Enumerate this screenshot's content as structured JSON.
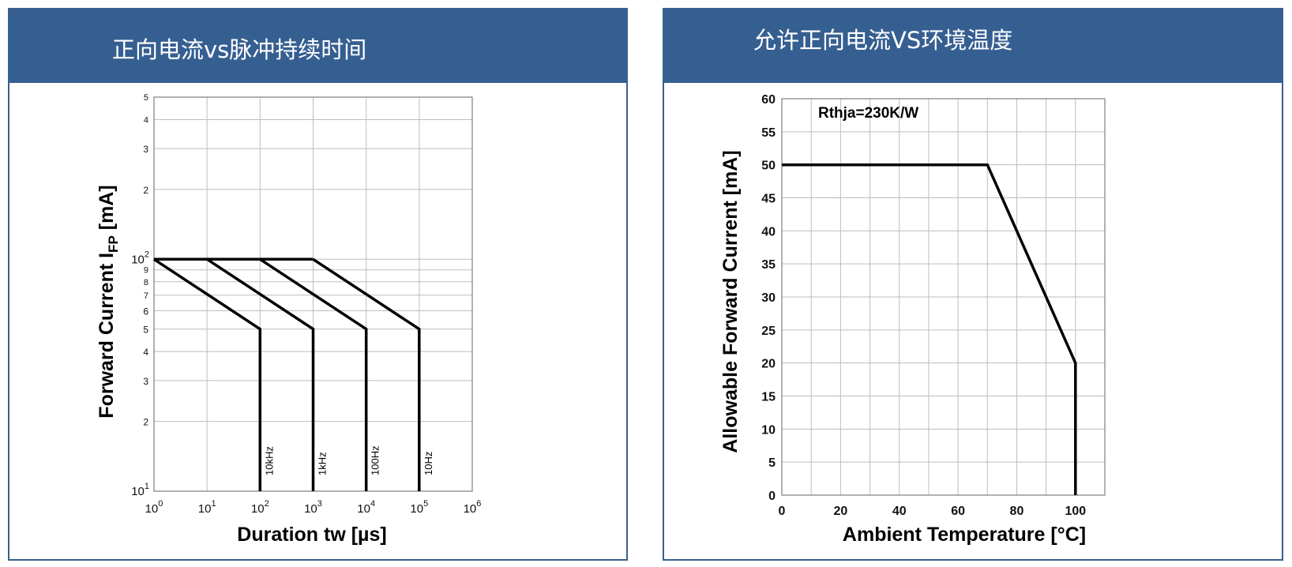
{
  "panels": {
    "left": {
      "title": "正向电流vs脉冲持续时间"
    },
    "right": {
      "title": "允许正向电流VS环境温度"
    }
  },
  "chart_data": [
    {
      "type": "line",
      "title": "正向电流vs脉冲持续时间",
      "xlabel": "Duration tw [µs]",
      "ylabel_main": "Forward Current I",
      "ylabel_sub": "FP",
      "ylabel_unit": " [mA]",
      "x_scale": "log",
      "y_scale": "log",
      "xlim": [
        1,
        1000000
      ],
      "ylim": [
        10,
        500
      ],
      "x_ticks": [
        {
          "value": 1,
          "base": "10",
          "exp": "0"
        },
        {
          "value": 10,
          "base": "10",
          "exp": "1"
        },
        {
          "value": 100,
          "base": "10",
          "exp": "2"
        },
        {
          "value": 1000,
          "base": "10",
          "exp": "3"
        },
        {
          "value": 10000,
          "base": "10",
          "exp": "4"
        },
        {
          "value": 100000,
          "base": "10",
          "exp": "5"
        },
        {
          "value": 1000000,
          "base": "10",
          "exp": "6"
        }
      ],
      "y_major_ticks": [
        {
          "value": 10,
          "base": "10",
          "exp": "1"
        },
        {
          "value": 100,
          "base": "10",
          "exp": "2"
        }
      ],
      "y_minor_ticks": [
        {
          "value": 20,
          "label": "2",
          "size": "large"
        },
        {
          "value": 30,
          "label": "3",
          "size": "large"
        },
        {
          "value": 40,
          "label": "4",
          "size": "large"
        },
        {
          "value": 50,
          "label": "5",
          "size": "large"
        },
        {
          "value": 60,
          "label": "6",
          "size": "large"
        },
        {
          "value": 70,
          "label": "7",
          "size": "small"
        },
        {
          "value": 80,
          "label": "8",
          "size": "small"
        },
        {
          "value": 90,
          "label": "9",
          "size": "small"
        },
        {
          "value": 200,
          "label": "2",
          "size": "large"
        },
        {
          "value": 300,
          "label": "3",
          "size": "large"
        },
        {
          "value": 400,
          "label": "4",
          "size": "small"
        },
        {
          "value": 500,
          "label": "5",
          "size": "small"
        }
      ],
      "grid": true,
      "series": [
        {
          "name": "10kHz",
          "points": [
            [
              1,
              100
            ],
            [
              100,
              50
            ],
            [
              100,
              10
            ]
          ]
        },
        {
          "name": "1kHz",
          "points": [
            [
              10,
              100
            ],
            [
              1000,
              50
            ],
            [
              1000,
              10
            ]
          ]
        },
        {
          "name": "100Hz",
          "points": [
            [
              100,
              100
            ],
            [
              10000,
              50
            ],
            [
              10000,
              10
            ]
          ]
        },
        {
          "name": "10Hz",
          "points": [
            [
              1000,
              100
            ],
            [
              100000,
              50
            ],
            [
              100000,
              10
            ]
          ]
        }
      ],
      "top_line": {
        "points": [
          [
            1,
            100
          ],
          [
            1000,
            100
          ]
        ]
      }
    },
    {
      "type": "line",
      "title": "允许正向电流VS环境温度",
      "xlabel": "Ambient Temperature [°C]",
      "ylabel": "Allowable Forward Current [mA]",
      "annotation": "Rthja=230K/W",
      "xlim": [
        0,
        110
      ],
      "ylim": [
        0,
        60
      ],
      "x_ticks": [
        0,
        20,
        40,
        60,
        80,
        100
      ],
      "y_ticks": [
        0,
        5,
        10,
        15,
        20,
        25,
        30,
        35,
        40,
        45,
        50,
        55,
        60
      ],
      "grid": true,
      "series": [
        {
          "points": [
            [
              0,
              50
            ],
            [
              70,
              50
            ],
            [
              100,
              20
            ],
            [
              100,
              0
            ]
          ]
        }
      ]
    }
  ]
}
